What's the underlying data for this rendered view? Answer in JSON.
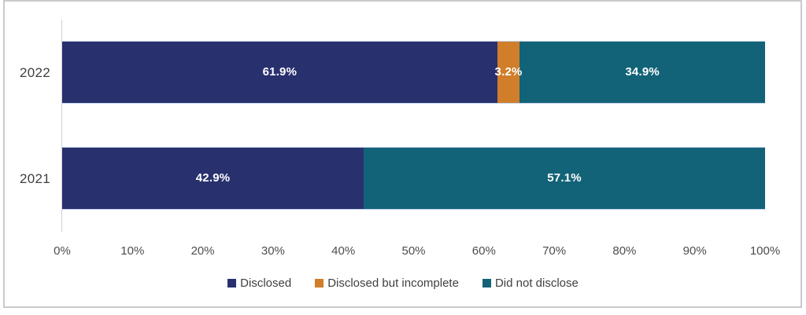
{
  "frame": {
    "border_color": "#c9cacb",
    "background": "#ffffff"
  },
  "chart_data": {
    "type": "bar",
    "orientation": "horizontal",
    "stacked": true,
    "title": "",
    "xlabel": "",
    "ylabel": "",
    "unit": "%",
    "categories": [
      "2022",
      "2021"
    ],
    "series": [
      {
        "name": "Disclosed",
        "color": "#29306e",
        "values": [
          61.9,
          42.9
        ]
      },
      {
        "name": "Disclosed but incomplete",
        "color": "#d07e2a",
        "values": [
          3.2,
          0
        ]
      },
      {
        "name": "Did not disclose",
        "color": "#136378",
        "values": [
          34.9,
          57.1
        ]
      }
    ],
    "value_labels": [
      [
        "61.9%",
        "3.2%",
        "34.9%"
      ],
      [
        "42.9%",
        "",
        "57.1%"
      ]
    ],
    "x_ticks": [
      "0%",
      "10%",
      "20%",
      "30%",
      "40%",
      "50%",
      "60%",
      "70%",
      "80%",
      "90%",
      "100%"
    ],
    "xlim": [
      0,
      100
    ],
    "grid": false,
    "legend_position": "bottom",
    "axis_line_color": "#d0d0d0",
    "tick_label_color": "#4d4d4d",
    "category_label_color": "#3f3f3f",
    "bar_value_label_color": "#ffffff"
  }
}
